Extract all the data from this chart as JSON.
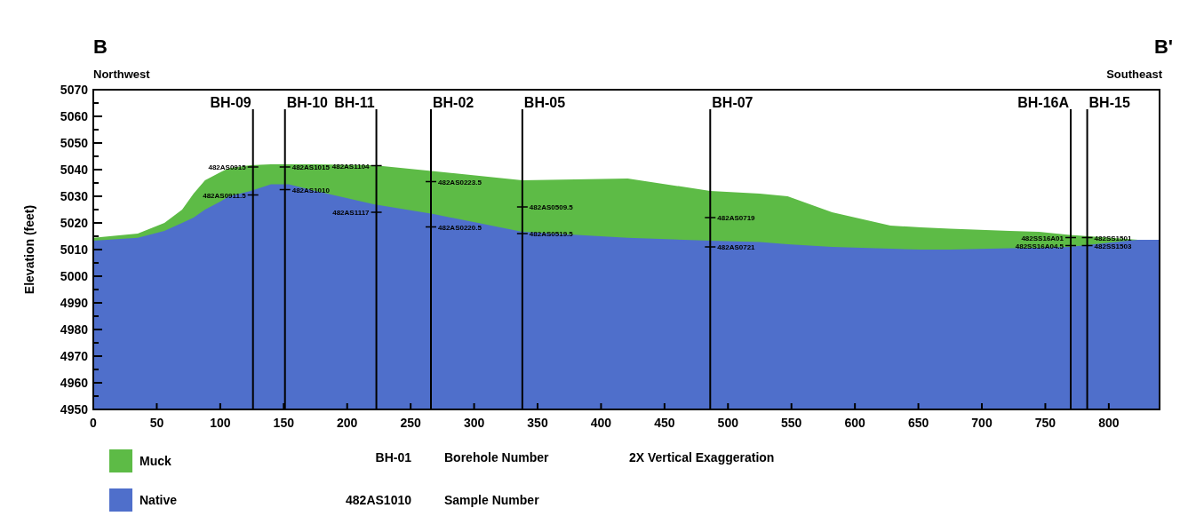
{
  "chart_data": {
    "type": "area",
    "ylabel": "Elevation (feet)",
    "x": [
      0,
      35,
      56,
      70,
      79,
      88,
      100,
      107,
      124,
      140,
      154,
      175,
      198,
      221,
      268,
      338,
      421,
      486,
      525,
      547,
      582,
      628,
      652,
      675,
      722,
      745,
      769,
      823,
      840
    ],
    "series": [
      {
        "name": "Muck",
        "color": "#5dbb46",
        "values": [
          5014.4,
          5016,
          5020,
          5025,
          5031,
          5036,
          5039,
          5040.6,
          5041.7,
          5042,
          5042,
          5042,
          5041.8,
          5041.7,
          5039.4,
          5036,
          5036.7,
          5032,
          5031,
          5030,
          5024,
          5019,
          5018.3,
          5017.8,
          5017,
          5016.7,
          5015.5,
          5013.7,
          5013.7
        ]
      },
      {
        "name": "Native",
        "color": "#4f6fcb",
        "values": [
          5013.3,
          5014.4,
          5017,
          5020,
          5022,
          5025,
          5028,
          5030,
          5032,
          5034.5,
          5034.5,
          5032,
          5029.5,
          5027,
          5023.3,
          5016.7,
          5014.4,
          5013.3,
          5012.8,
          5012,
          5011,
          5010.3,
          5010,
          5010,
          5010.5,
          5010.7,
          5011,
          5013.7,
          5013.7
        ]
      }
    ],
    "xlim": [
      0,
      840
    ],
    "xticks": [
      0,
      50,
      100,
      150,
      200,
      250,
      300,
      350,
      400,
      450,
      500,
      550,
      600,
      650,
      700,
      750,
      800
    ],
    "ylim": [
      4950,
      5070
    ],
    "yticks": [
      4950,
      {
        "value": 4955,
        "label": null
      },
      4960,
      {
        "value": 4965,
        "label": null
      },
      4970,
      {
        "value": 4975,
        "label": null
      },
      4980,
      {
        "value": 4985,
        "label": null
      },
      4990,
      {
        "value": 4995,
        "label": null
      },
      5000,
      {
        "value": 5005,
        "label": null
      },
      5010,
      {
        "value": 5015,
        "label": null
      },
      5020,
      {
        "value": 5025,
        "label": null
      },
      5030,
      {
        "value": 5035,
        "label": null
      },
      5040,
      {
        "value": 5045,
        "label": null
      },
      5050,
      {
        "value": 5055,
        "label": null
      },
      5060,
      {
        "value": 5065,
        "label": null
      },
      5070
    ],
    "grid": false,
    "legend": "bottom left",
    "ref_lines": [
      {
        "axis": "x",
        "value": 125.8,
        "label": "BH-09",
        "color": "#000000"
      },
      {
        "axis": "x",
        "value": 151,
        "label": "BH-10",
        "color": "#000000"
      },
      {
        "axis": "x",
        "value": 223,
        "label": "BH-11",
        "color": "#000000"
      },
      {
        "axis": "x",
        "value": 266,
        "label": "BH-02",
        "color": "#000000"
      },
      {
        "axis": "x",
        "value": 338,
        "label": "BH-05",
        "color": "#000000"
      },
      {
        "axis": "x",
        "value": 486,
        "label": "BH-07",
        "color": "#000000"
      },
      {
        "axis": "x",
        "value": 770,
        "label": "BH-16A",
        "color": "#000000"
      },
      {
        "axis": "x",
        "value": 783,
        "label": "BH-15",
        "color": "#000000"
      }
    ],
    "annotations": [
      "B",
      "Northwest",
      "B'",
      "Southeast",
      "BH-01",
      "Borehole Number",
      "482AS1010",
      "Sample Number",
      "2X Vertical Exaggeration",
      {
        "text": "482AS0915",
        "x": 125.8,
        "y": 5041
      },
      {
        "text": "482AS0911.5",
        "x": 125.8,
        "y": 5030.5
      },
      {
        "text": "482AS1015",
        "x": 151,
        "y": 5041
      },
      {
        "text": "482AS1010",
        "x": 151,
        "y": 5032.5
      },
      {
        "text": "482AS1104",
        "x": 223,
        "y": 5041.5
      },
      {
        "text": "482AS1117",
        "x": 223,
        "y": 5024
      },
      {
        "text": "482AS0223.5",
        "x": 266,
        "y": 5035.5
      },
      {
        "text": "482AS0220.5",
        "x": 266,
        "y": 5018.5
      },
      {
        "text": "482AS0509.5",
        "x": 338,
        "y": 5026
      },
      {
        "text": "482AS0519.5",
        "x": 338,
        "y": 5016
      },
      {
        "text": "482AS0719",
        "x": 486,
        "y": 5022
      },
      {
        "text": "482AS0721",
        "x": 486,
        "y": 5011
      },
      {
        "text": "482SS16A01",
        "x": 770,
        "y": 5014.5
      },
      {
        "text": "482SS16A04.5",
        "x": 770,
        "y": 5011.5
      },
      {
        "text": "482SS1501",
        "x": 783,
        "y": 5014.5
      },
      {
        "text": "482SS1503",
        "x": 783,
        "y": 5011.5
      }
    ]
  }
}
